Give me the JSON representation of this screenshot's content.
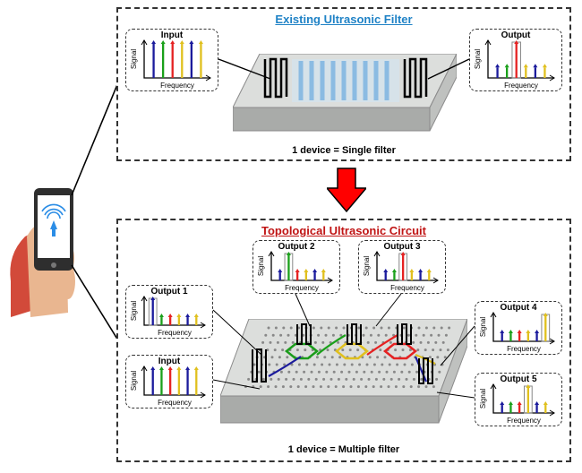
{
  "palette": {
    "panel_border": "#333333",
    "title_existing": "#1f82c6",
    "title_topological": "#c01414",
    "arrow_fill": "#ff0000",
    "device_top": "#dcdedc",
    "device_side": "#bfc1bf",
    "device_front": "#a9aba9",
    "wave_fill": "#7fb6e6",
    "phone_body": "#2e2e2e",
    "phone_screen": "#ffffff",
    "hand_skin": "#e9b690",
    "hand_sleeve": "#d24a3a",
    "signal_blue": "#2b8de6"
  },
  "spectrum_colors": [
    "#1b1b9c",
    "#1aa01a",
    "#e52222",
    "#e0c01e",
    "#1b1b9c",
    "#e0c01e"
  ],
  "top": {
    "title": "Existing Ultrasonic Filter",
    "input": {
      "label": "Input",
      "highlight": null
    },
    "output": {
      "label": "Output",
      "highlight": 2
    },
    "caption": "1 device = Single filter"
  },
  "bot": {
    "title": "Topological Ultrasonic Circuit",
    "input": {
      "label": "Input",
      "highlight": null
    },
    "outputs": [
      {
        "label": "Output 1",
        "highlight": 0
      },
      {
        "label": "Output 2",
        "highlight": 1
      },
      {
        "label": "Output 3",
        "highlight": 2
      },
      {
        "label": "Output 4",
        "highlight": 5
      },
      {
        "label": "Output 5",
        "highlight": 3
      }
    ],
    "caption": "1 device = Multiple filter"
  },
  "axis": {
    "x": "Frequency",
    "y": "Signal",
    "fontsize": 8
  }
}
